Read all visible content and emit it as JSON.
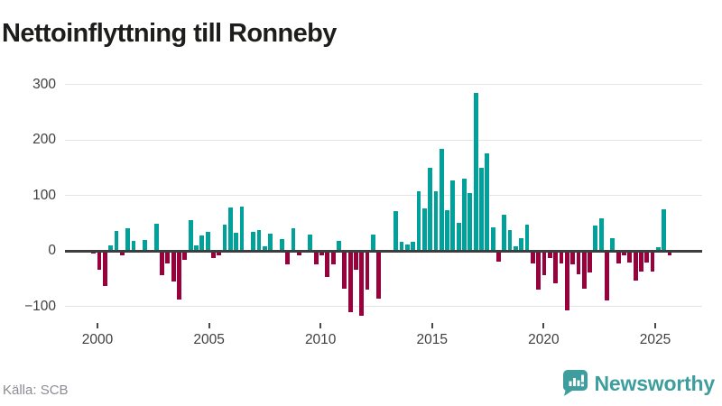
{
  "header": {
    "title": "Nettoinflyttning till Ronneby"
  },
  "footer": {
    "source_label": "Källa: SCB",
    "brand": {
      "name": "Newsworthy",
      "icon": "newsworthy-speech-bubble-barchart-icon"
    }
  },
  "colors": {
    "positive": "#00A09B",
    "negative": "#98013C",
    "axis": "#3D3D3D",
    "grid": "#E4E4E4",
    "brand_teal": "#3D9E9D",
    "title_text": "#1D1D1B",
    "tick_text": "#3F3F3F",
    "source_text": "#8C8C94"
  },
  "chart_data": {
    "type": "bar",
    "title": "Nettoinflyttning till Ronneby",
    "xlabel": "",
    "ylabel": "",
    "grid": true,
    "legend": "none",
    "series_period": "quarterly",
    "first_bar": "2000 Q1",
    "last_bar": "2025 Q3",
    "x_tick_labels": [
      "2000",
      "2005",
      "2010",
      "2015",
      "2020",
      "2025"
    ],
    "y_tick_labels": [
      "300",
      "200",
      "100",
      "0",
      "−100"
    ],
    "y_ticks": [
      300,
      200,
      100,
      0,
      -100
    ],
    "ylim": [
      -130,
      310
    ],
    "values": [
      2,
      -3,
      -32,
      -61,
      10,
      36,
      -7,
      40,
      18,
      2,
      19,
      2,
      48,
      -42,
      -21,
      -53,
      -86,
      -15,
      56,
      10,
      28,
      34,
      -12,
      -6,
      47,
      78,
      32,
      80,
      2,
      34,
      37,
      8,
      31,
      2,
      21,
      -23,
      40,
      -6,
      2,
      29,
      -23,
      -7,
      -46,
      -23,
      18,
      -67,
      -109,
      -33,
      -115,
      -69,
      30,
      -84,
      2,
      2,
      72,
      17,
      11,
      16,
      108,
      77,
      149,
      108,
      184,
      73,
      127,
      50,
      130,
      104,
      285,
      149,
      175,
      43,
      -18,
      65,
      37,
      8,
      22,
      47,
      -21,
      -68,
      -42,
      -11,
      -57,
      -21,
      -105,
      -23,
      -40,
      -67,
      -37,
      46,
      58,
      -87,
      22,
      -21,
      -6,
      -19,
      -52,
      -36,
      -19,
      -36,
      7,
      74,
      -7
    ]
  }
}
